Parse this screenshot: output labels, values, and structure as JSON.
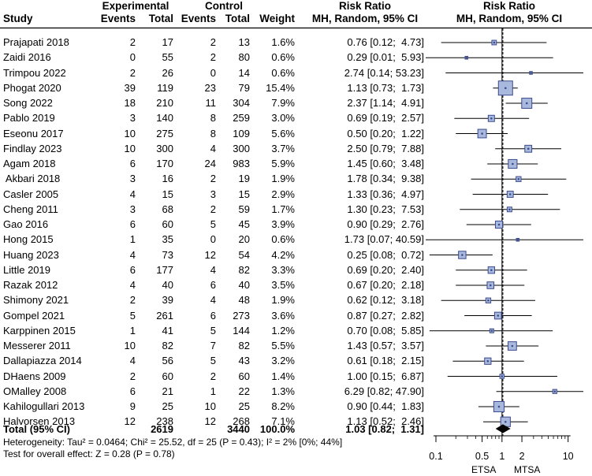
{
  "headers": {
    "study": "Study",
    "experimental": "Experimental",
    "control": "Control",
    "events": "Events",
    "total": "Total",
    "weight": "Weight",
    "risk_ratio": "Risk Ratio",
    "method": "MH, Random, 95% CI"
  },
  "rows": [
    {
      "study": "Prajapati 2018",
      "e_events": "2",
      "e_total": "17",
      "c_events": "2",
      "c_total": "13",
      "weight": "1.6%",
      "ci": "0.76 [0.12;  4.73]"
    },
    {
      "study": "Zaidi 2016",
      "e_events": "0",
      "e_total": "55",
      "c_events": "2",
      "c_total": "80",
      "weight": "0.6%",
      "ci": "0.29 [0.01;  5.93]"
    },
    {
      "study": "Trimpou 2022",
      "e_events": "2",
      "e_total": "26",
      "c_events": "0",
      "c_total": "14",
      "weight": "0.6%",
      "ci": "2.74 [0.14; 53.23]"
    },
    {
      "study": "Phogat 2020",
      "e_events": "39",
      "e_total": "119",
      "c_events": "23",
      "c_total": "79",
      "weight": "15.4%",
      "ci": "1.13 [0.73;  1.73]"
    },
    {
      "study": "Song 2022",
      "e_events": "18",
      "e_total": "210",
      "c_events": "11",
      "c_total": "304",
      "weight": "7.9%",
      "ci": "2.37 [1.14;  4.91]"
    },
    {
      "study": "Pablo 2019",
      "e_events": "3",
      "e_total": "140",
      "c_events": "8",
      "c_total": "259",
      "weight": "3.0%",
      "ci": "0.69 [0.19;  2.57]"
    },
    {
      "study": "Eseonu 2017",
      "e_events": "10",
      "e_total": "275",
      "c_events": "8",
      "c_total": "109",
      "weight": "5.6%",
      "ci": "0.50 [0.20;  1.22]"
    },
    {
      "study": "Findlay 2023",
      "e_events": "10",
      "e_total": "300",
      "c_events": "4",
      "c_total": "300",
      "weight": "3.7%",
      "ci": "2.50 [0.79;  7.88]"
    },
    {
      "study": "Agam 2018",
      "e_events": "6",
      "e_total": "170",
      "c_events": "24",
      "c_total": "983",
      "weight": "5.9%",
      "ci": "1.45 [0.60;  3.48]"
    },
    {
      "study": " Akbari 2018",
      "e_events": "3",
      "e_total": "16",
      "c_events": "2",
      "c_total": "19",
      "weight": "1.9%",
      "ci": "1.78 [0.34;  9.38]"
    },
    {
      "study": "Casler 2005",
      "e_events": "4",
      "e_total": "15",
      "c_events": "3",
      "c_total": "15",
      "weight": "2.9%",
      "ci": "1.33 [0.36;  4.97]"
    },
    {
      "study": "Cheng 2011",
      "e_events": "3",
      "e_total": "68",
      "c_events": "2",
      "c_total": "59",
      "weight": "1.7%",
      "ci": "1.30 [0.23;  7.53]"
    },
    {
      "study": "Gao 2016",
      "e_events": "6",
      "e_total": "60",
      "c_events": "5",
      "c_total": "45",
      "weight": "3.9%",
      "ci": "0.90 [0.29;  2.76]"
    },
    {
      "study": "Hong 2015",
      "e_events": "1",
      "e_total": "35",
      "c_events": "0",
      "c_total": "20",
      "weight": "0.6%",
      "ci": "1.73 [0.07; 40.59]"
    },
    {
      "study": "Huang 2023",
      "e_events": "4",
      "e_total": "73",
      "c_events": "12",
      "c_total": "54",
      "weight": "4.2%",
      "ci": "0.25 [0.08;  0.72]"
    },
    {
      "study": "Little 2019",
      "e_events": "6",
      "e_total": "177",
      "c_events": "4",
      "c_total": "82",
      "weight": "3.3%",
      "ci": "0.69 [0.20;  2.40]"
    },
    {
      "study": "Razak 2012",
      "e_events": "4",
      "e_total": "40",
      "c_events": "6",
      "c_total": "40",
      "weight": "3.5%",
      "ci": "0.67 [0.20;  2.18]"
    },
    {
      "study": "Shimony 2021",
      "e_events": "2",
      "e_total": "39",
      "c_events": "4",
      "c_total": "48",
      "weight": "1.9%",
      "ci": "0.62 [0.12;  3.18]"
    },
    {
      "study": "Gompel 2021",
      "e_events": "5",
      "e_total": "261",
      "c_events": "6",
      "c_total": "273",
      "weight": "3.6%",
      "ci": "0.87 [0.27;  2.82]"
    },
    {
      "study": "Karppinen 2015",
      "e_events": "1",
      "e_total": "41",
      "c_events": "5",
      "c_total": "144",
      "weight": "1.2%",
      "ci": "0.70 [0.08;  5.85]"
    },
    {
      "study": "Messerer 2011",
      "e_events": "10",
      "e_total": "82",
      "c_events": "7",
      "c_total": "82",
      "weight": "5.5%",
      "ci": "1.43 [0.57;  3.57]"
    },
    {
      "study": "Dallapiazza 2014",
      "e_events": "4",
      "e_total": "56",
      "c_events": "5",
      "c_total": "43",
      "weight": "3.2%",
      "ci": "0.61 [0.18;  2.15]"
    },
    {
      "study": "DHaens 2009",
      "e_events": "2",
      "e_total": "60",
      "c_events": "2",
      "c_total": "60",
      "weight": "1.4%",
      "ci": "1.00 [0.15;  6.87]"
    },
    {
      "study": "OMalley 2008",
      "e_events": "6",
      "e_total": "21",
      "c_events": "1",
      "c_total": "22",
      "weight": "1.3%",
      "ci": "6.29 [0.82; 47.90]"
    },
    {
      "study": "Kahilogullari 2013",
      "e_events": "9",
      "e_total": "25",
      "c_events": "10",
      "c_total": "25",
      "weight": "8.2%",
      "ci": "0.90 [0.44;  1.83]"
    },
    {
      "study": "Halvorsen 2013",
      "e_events": "12",
      "e_total": "238",
      "c_events": "12",
      "c_total": "268",
      "weight": "7.1%",
      "ci": "1.13 [0.52;  2.46]"
    }
  ],
  "total": {
    "label": "Total (95% CI)",
    "e_total": "2619",
    "c_total": "3440",
    "weight": "100.0%",
    "ci": "1.03 [0.82;  1.31]"
  },
  "footer": {
    "heterogeneity": "Heterogeneity: Tau² = 0.0464; Chi² = 25.52, df = 25 (P = 0.43); I² = 2% [0%; 44%]",
    "overall_effect": "Test for overall effect: Z = 0.28 (P = 0.78)"
  },
  "axis": {
    "ticks": [
      "0.1",
      "0.5",
      "1",
      "2",
      "10"
    ],
    "tick_values": [
      0.1,
      0.5,
      1,
      2,
      10
    ],
    "range": [
      0.07,
      17
    ],
    "left_label": "ETSA",
    "right_label": "MTSA",
    "scale": "log"
  },
  "colors": {
    "box_fill": "#a9b9dd",
    "box_stroke": "#3a4a8c",
    "line": "#000000",
    "diamond": "#000000"
  },
  "chart_data": {
    "type": "forest",
    "scale": "log",
    "xlim": [
      0.07,
      17
    ],
    "reference_line": 1,
    "studies": [
      {
        "name": "Prajapati 2018",
        "rr": 0.76,
        "lo": 0.12,
        "hi": 4.73,
        "weight": 1.6
      },
      {
        "name": "Zaidi 2016",
        "rr": 0.29,
        "lo": 0.01,
        "hi": 5.93,
        "weight": 0.6
      },
      {
        "name": "Trimpou 2022",
        "rr": 2.74,
        "lo": 0.14,
        "hi": 53.23,
        "weight": 0.6
      },
      {
        "name": "Phogat 2020",
        "rr": 1.13,
        "lo": 0.73,
        "hi": 1.73,
        "weight": 15.4
      },
      {
        "name": "Song 2022",
        "rr": 2.37,
        "lo": 1.14,
        "hi": 4.91,
        "weight": 7.9
      },
      {
        "name": "Pablo 2019",
        "rr": 0.69,
        "lo": 0.19,
        "hi": 2.57,
        "weight": 3.0
      },
      {
        "name": "Eseonu 2017",
        "rr": 0.5,
        "lo": 0.2,
        "hi": 1.22,
        "weight": 5.6
      },
      {
        "name": "Findlay 2023",
        "rr": 2.5,
        "lo": 0.79,
        "hi": 7.88,
        "weight": 3.7
      },
      {
        "name": "Agam 2018",
        "rr": 1.45,
        "lo": 0.6,
        "hi": 3.48,
        "weight": 5.9
      },
      {
        "name": " Akbari 2018",
        "rr": 1.78,
        "lo": 0.34,
        "hi": 9.38,
        "weight": 1.9
      },
      {
        "name": "Casler 2005",
        "rr": 1.33,
        "lo": 0.36,
        "hi": 4.97,
        "weight": 2.9
      },
      {
        "name": "Cheng 2011",
        "rr": 1.3,
        "lo": 0.23,
        "hi": 7.53,
        "weight": 1.7
      },
      {
        "name": "Gao 2016",
        "rr": 0.9,
        "lo": 0.29,
        "hi": 2.76,
        "weight": 3.9
      },
      {
        "name": "Hong 2015",
        "rr": 1.73,
        "lo": 0.07,
        "hi": 40.59,
        "weight": 0.6
      },
      {
        "name": "Huang 2023",
        "rr": 0.25,
        "lo": 0.08,
        "hi": 0.72,
        "weight": 4.2
      },
      {
        "name": "Little 2019",
        "rr": 0.69,
        "lo": 0.2,
        "hi": 2.4,
        "weight": 3.3
      },
      {
        "name": "Razak 2012",
        "rr": 0.67,
        "lo": 0.2,
        "hi": 2.18,
        "weight": 3.5
      },
      {
        "name": "Shimony 2021",
        "rr": 0.62,
        "lo": 0.12,
        "hi": 3.18,
        "weight": 1.9
      },
      {
        "name": "Gompel 2021",
        "rr": 0.87,
        "lo": 0.27,
        "hi": 2.82,
        "weight": 3.6
      },
      {
        "name": "Karppinen 2015",
        "rr": 0.7,
        "lo": 0.08,
        "hi": 5.85,
        "weight": 1.2
      },
      {
        "name": "Messerer 2011",
        "rr": 1.43,
        "lo": 0.57,
        "hi": 3.57,
        "weight": 5.5
      },
      {
        "name": "Dallapiazza 2014",
        "rr": 0.61,
        "lo": 0.18,
        "hi": 2.15,
        "weight": 3.2
      },
      {
        "name": "DHaens 2009",
        "rr": 1.0,
        "lo": 0.15,
        "hi": 6.87,
        "weight": 1.4
      },
      {
        "name": "OMalley 2008",
        "rr": 6.29,
        "lo": 0.82,
        "hi": 47.9,
        "weight": 1.3
      },
      {
        "name": "Kahilogullari 2013",
        "rr": 0.9,
        "lo": 0.44,
        "hi": 1.83,
        "weight": 8.2
      },
      {
        "name": "Halvorsen 2013",
        "rr": 1.13,
        "lo": 0.52,
        "hi": 2.46,
        "weight": 7.1
      }
    ],
    "pooled": {
      "name": "Total (95% CI)",
      "rr": 1.03,
      "lo": 0.82,
      "hi": 1.31
    },
    "xlabel_left": "ETSA",
    "xlabel_right": "MTSA",
    "title": "Risk Ratio",
    "subtitle": "MH, Random, 95% CI"
  }
}
